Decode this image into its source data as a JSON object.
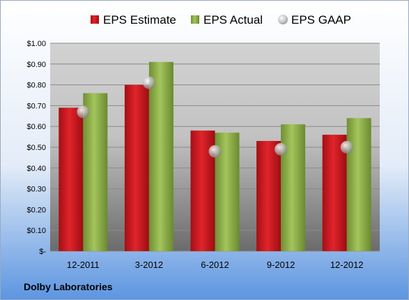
{
  "chart_data": {
    "type": "bar",
    "categories": [
      "12-2011",
      "3-2012",
      "6-2012",
      "9-2012",
      "12-2012"
    ],
    "series": [
      {
        "name": "EPS Estimate",
        "kind": "bar",
        "color": "#c8161d",
        "values": [
          0.69,
          0.8,
          0.58,
          0.53,
          0.56
        ]
      },
      {
        "name": "EPS Actual",
        "kind": "bar",
        "color": "#8eb048",
        "values": [
          0.76,
          0.91,
          0.57,
          0.61,
          0.64
        ]
      },
      {
        "name": "EPS GAAP",
        "kind": "marker",
        "color": "#a0a0a0",
        "values": [
          0.67,
          0.81,
          0.48,
          0.49,
          0.5
        ]
      }
    ],
    "ylim": [
      0,
      1.0
    ],
    "yticks": [
      0,
      0.1,
      0.2,
      0.3,
      0.4,
      0.5,
      0.6,
      0.7,
      0.8,
      0.9,
      1.0
    ],
    "ytick_labels": [
      "$-",
      "$0.10",
      "$0.20",
      "$0.30",
      "$0.40",
      "$0.50",
      "$0.60",
      "$0.70",
      "$0.80",
      "$0.90",
      "$1.00"
    ],
    "grid": true,
    "legend_position": "top"
  },
  "footer": {
    "company": "Dolby Laboratories"
  }
}
